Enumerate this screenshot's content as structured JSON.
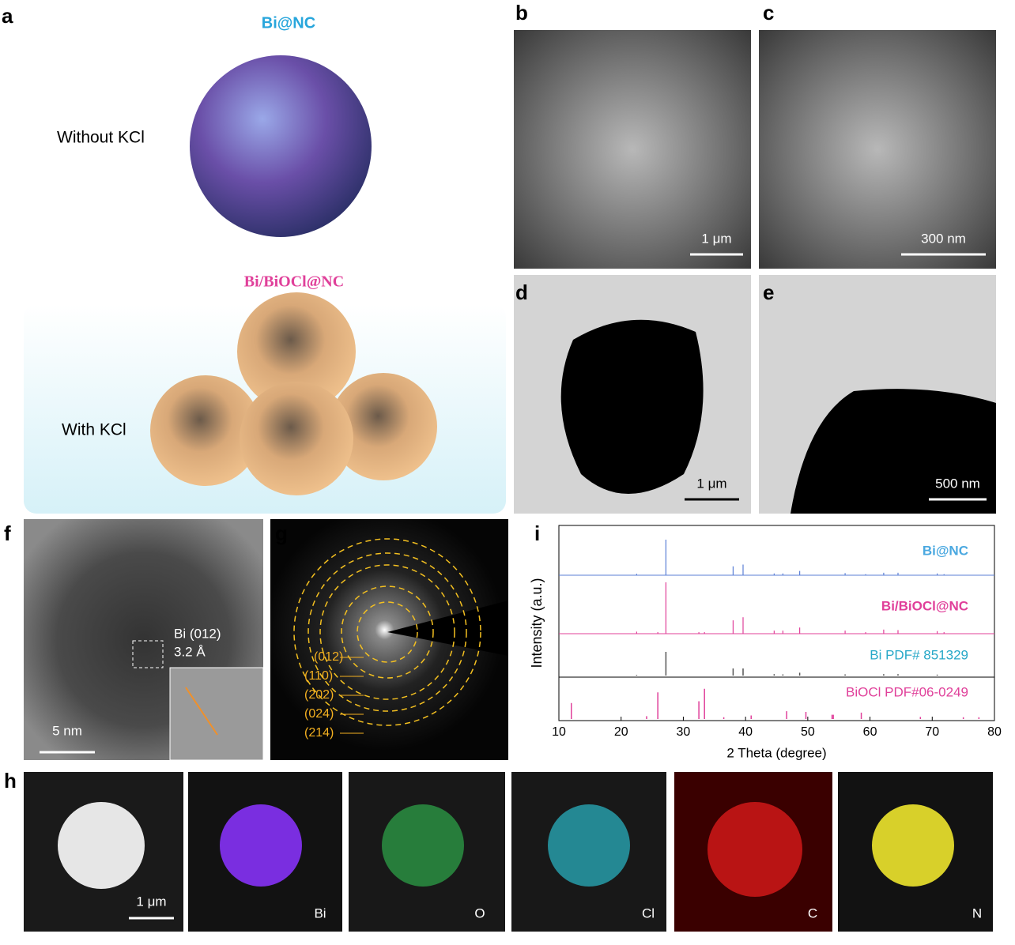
{
  "panel_labels": [
    "a",
    "b",
    "c",
    "d",
    "e",
    "f",
    "g",
    "h",
    "i"
  ],
  "a": {
    "top_title": "Bi@NC",
    "top_label": "Without KCl",
    "bottom_title": "Bi/BiOCl@NC",
    "bottom_label": "With KCl"
  },
  "scale_bars": {
    "b": "1 μm",
    "c": "300 nm",
    "d": "1 μm",
    "e": "500 nm",
    "f": "5 nm",
    "h": "1 μm"
  },
  "f": {
    "annotation_line1": "Bi (012)",
    "annotation_line2": "3.2 Å"
  },
  "g": {
    "rings": [
      "(012)",
      "(110)",
      "(202)",
      "(024)",
      "(214)"
    ]
  },
  "h": {
    "elements": [
      "Bi",
      "O",
      "Cl",
      "C",
      "N"
    ]
  },
  "xrd": {
    "type": "line",
    "xlabel": "2 Theta (degree)",
    "ylabel": "Intensity (a.u.)",
    "xlim": [
      10,
      80
    ],
    "xticks": [
      10,
      20,
      30,
      40,
      50,
      60,
      70,
      80
    ],
    "series": [
      {
        "name": "Bi@NC",
        "color": "#5b7fd6",
        "label_color": "#4aa8e0",
        "x": [
          22.5,
          27.2,
          38.0,
          39.6,
          44.6,
          46.0,
          48.7,
          56.0,
          59.3,
          62.2,
          64.5,
          70.8,
          71.9
        ],
        "values": [
          4,
          100,
          25,
          30,
          5,
          5,
          12,
          6,
          3,
          7,
          7,
          5,
          3
        ]
      },
      {
        "name": "Bi/BiOCl@NC",
        "color": "#e0409a",
        "label_color": "#e0409a",
        "x": [
          22.5,
          25.9,
          27.2,
          32.5,
          33.4,
          38.0,
          39.6,
          44.6,
          46.0,
          48.7,
          56.0,
          59.3,
          62.2,
          64.5,
          70.8,
          71.9
        ],
        "values": [
          4,
          3,
          100,
          3,
          3,
          26,
          32,
          6,
          6,
          12,
          6,
          3,
          8,
          7,
          5,
          3
        ]
      },
      {
        "name": "Bi PDF# 851329",
        "color": "#555555",
        "label_color": "#27a8c8",
        "x": [
          22.5,
          27.2,
          38.0,
          39.6,
          44.6,
          46.0,
          48.7,
          56.0,
          62.2,
          64.5,
          70.8
        ],
        "values": [
          3,
          100,
          30,
          30,
          6,
          5,
          12,
          5,
          6,
          6,
          4
        ]
      },
      {
        "name": "BiOCl PDF#06-0249",
        "color": "#e0409a",
        "label_color": "#e0409a",
        "x": [
          12.0,
          24.1,
          25.9,
          32.5,
          33.4,
          36.5,
          40.9,
          46.6,
          49.7,
          53.9,
          54.1,
          58.6,
          68.1,
          75.0,
          77.5
        ],
        "values": [
          45,
          8,
          75,
          50,
          85,
          5,
          10,
          22,
          20,
          12,
          12,
          18,
          6,
          5,
          5
        ]
      }
    ]
  }
}
